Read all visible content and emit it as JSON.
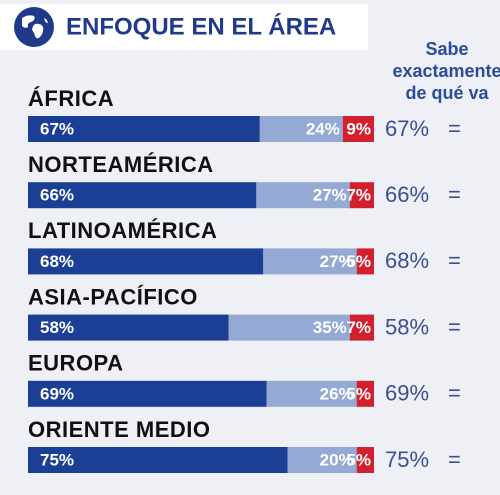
{
  "chart_data": {
    "type": "bar",
    "stacked": true,
    "orientation": "horizontal",
    "title": "ENFOQUE EN EL ÁREA",
    "summary_header": [
      "Sabe",
      "exactamente",
      "de qué va"
    ],
    "categories": [
      "ÁFRICA",
      "NORTEAMÉRICA",
      "LATINOAMÉRICA",
      "ASIA-PACÍFICO",
      "EUROPA",
      "ORIENTE MEDIO"
    ],
    "series": [
      {
        "color": "#1b3f94",
        "values": [
          67,
          66,
          68,
          58,
          69,
          75
        ],
        "value_labels": [
          "67%",
          "66%",
          "68%",
          "58%",
          "69%",
          "75%"
        ]
      },
      {
        "color": "#94a9d3",
        "values": [
          24,
          27,
          27,
          35,
          26,
          20
        ],
        "value_labels": [
          "24%",
          "27%",
          "27%",
          "35%",
          "26%",
          "20%"
        ]
      },
      {
        "color": "#d3202f",
        "values": [
          9,
          7,
          5,
          7,
          5,
          5
        ],
        "value_labels": [
          "9%",
          "7%",
          "5%",
          "7%",
          "5%",
          "5%"
        ]
      }
    ],
    "summary_values": [
      "67%",
      "66%",
      "68%",
      "58%",
      "69%",
      "75%"
    ],
    "summary_symbol": "="
  }
}
